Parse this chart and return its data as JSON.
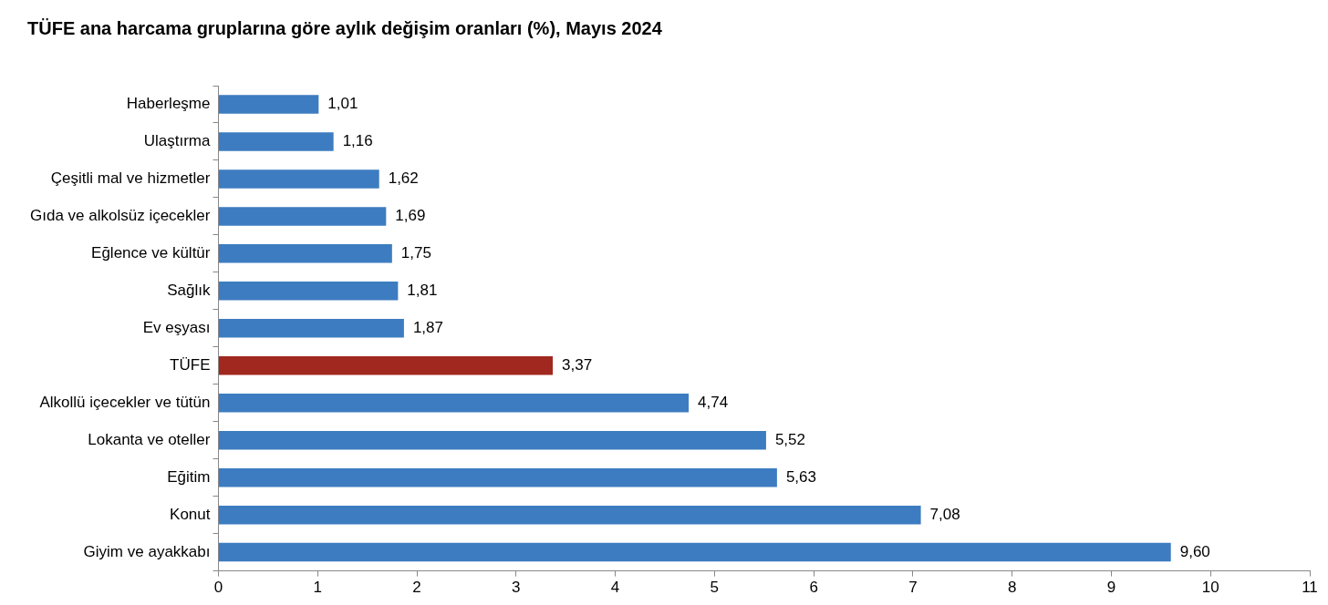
{
  "chart_data": {
    "type": "bar",
    "orientation": "horizontal",
    "title": "TÜFE ana harcama gruplarına göre aylık değişim oranları (%), Mayıs 2024",
    "categories": [
      "Haberleşme",
      "Ulaştırma",
      "Çeşitli mal ve hizmetler",
      "Gıda ve alkolsüz içecekler",
      "Eğlence ve kültür",
      "Sağlık",
      "Ev eşyası",
      "TÜFE",
      "Alkollü içecekler ve tütün",
      "Lokanta ve oteller",
      "Eğitim",
      "Konut",
      "Giyim ve ayakkabı"
    ],
    "values": [
      1.01,
      1.16,
      1.62,
      1.69,
      1.75,
      1.81,
      1.87,
      3.37,
      4.74,
      5.52,
      5.63,
      7.08,
      9.6
    ],
    "value_labels": [
      "1,01",
      "1,16",
      "1,62",
      "1,69",
      "1,75",
      "1,81",
      "1,87",
      "3,37",
      "4,74",
      "5,52",
      "5,63",
      "7,08",
      "9,60"
    ],
    "colors": [
      "#3d7cc0",
      "#3d7cc0",
      "#3d7cc0",
      "#3d7cc0",
      "#3d7cc0",
      "#3d7cc0",
      "#3d7cc0",
      "#a0281f",
      "#3d7cc0",
      "#3d7cc0",
      "#3d7cc0",
      "#3d7cc0",
      "#3d7cc0"
    ],
    "xlim": [
      0,
      11
    ],
    "xticks": [
      0,
      1,
      2,
      3,
      4,
      5,
      6,
      7,
      8,
      9,
      10,
      11
    ],
    "grid": false,
    "legend": false
  }
}
